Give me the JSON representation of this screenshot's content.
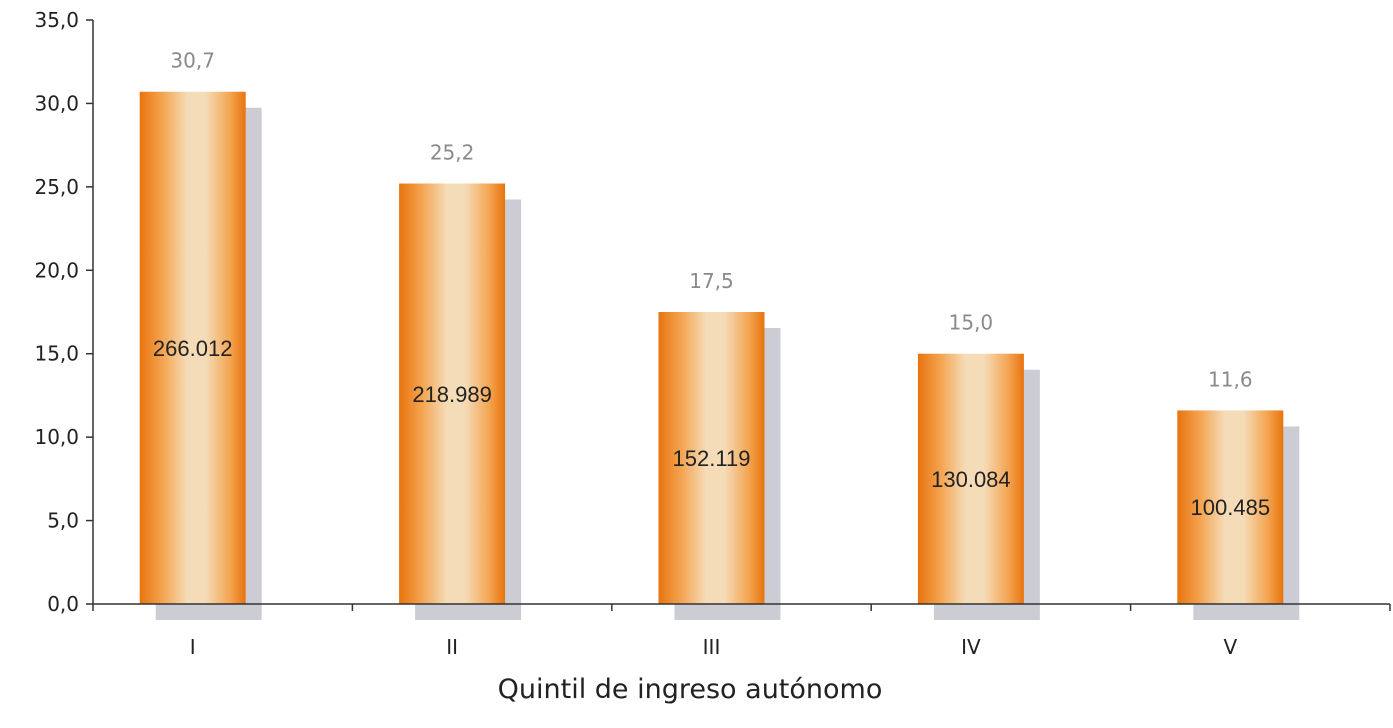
{
  "chart_data": {
    "type": "bar",
    "categories": [
      "I",
      "II",
      "III",
      "IV",
      "V"
    ],
    "series": [
      {
        "values": [
          30.7,
          25.2,
          17.5,
          15.0,
          11.6
        ],
        "value_labels": [
          "30,7",
          "25,2",
          "17,5",
          "15,0",
          "11,6"
        ],
        "inner_labels": [
          "266.012",
          "218.989",
          "152.119",
          "130.084",
          "100.485"
        ]
      }
    ],
    "xlabel": "Quintil de ingreso autónomo",
    "ylabel": "",
    "ylim": [
      0,
      35
    ],
    "yticks": [
      0,
      5,
      10,
      15,
      20,
      25,
      30,
      35
    ],
    "ytick_labels": [
      "0,0",
      "5,0",
      "10,0",
      "15,0",
      "20,0",
      "25,0",
      "30,0",
      "35,0"
    ],
    "grid": false,
    "legend": "none",
    "colors": {
      "bar_dark": "#e8740e",
      "bar_mid": "#f4a552",
      "bar_light": "#f5dcb8",
      "shadow": "#ccccd5",
      "axis": "#333333",
      "value_label": "#8a8a8a"
    }
  }
}
